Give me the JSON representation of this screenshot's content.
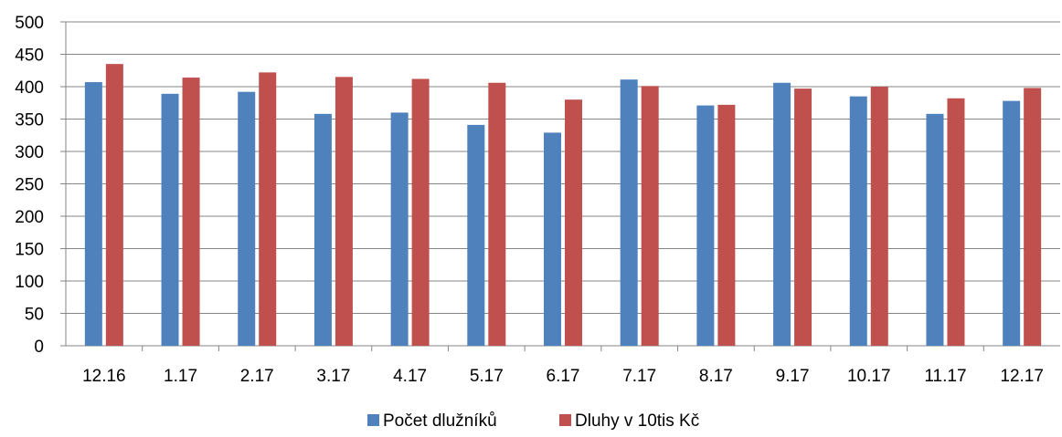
{
  "chart_data": {
    "type": "bar",
    "title": "",
    "xlabel": "",
    "ylabel": "",
    "ylim": [
      0,
      500
    ],
    "yticks": [
      "0",
      "50",
      "100",
      "150",
      "200",
      "250",
      "300",
      "350",
      "400",
      "450",
      "500"
    ],
    "grid": true,
    "legend_position": "bottom",
    "categories": [
      "12.16",
      "1.17",
      "2.17",
      "3.17",
      "4.17",
      "5.17",
      "6.17",
      "7.17",
      "8.17",
      "9.17",
      "10.17",
      "11.17",
      "12.17"
    ],
    "series": [
      {
        "name": "Počet dlužníků",
        "color": "#4f81bd",
        "values": [
          407,
          389,
          392,
          358,
          360,
          341,
          329,
          411,
          371,
          406,
          385,
          358,
          378
        ]
      },
      {
        "name": "Dluhy v 10tis Kč",
        "color": "#c0504d",
        "values": [
          435,
          414,
          422,
          415,
          412,
          406,
          380,
          401,
          372,
          397,
          400,
          382,
          398
        ]
      }
    ]
  }
}
